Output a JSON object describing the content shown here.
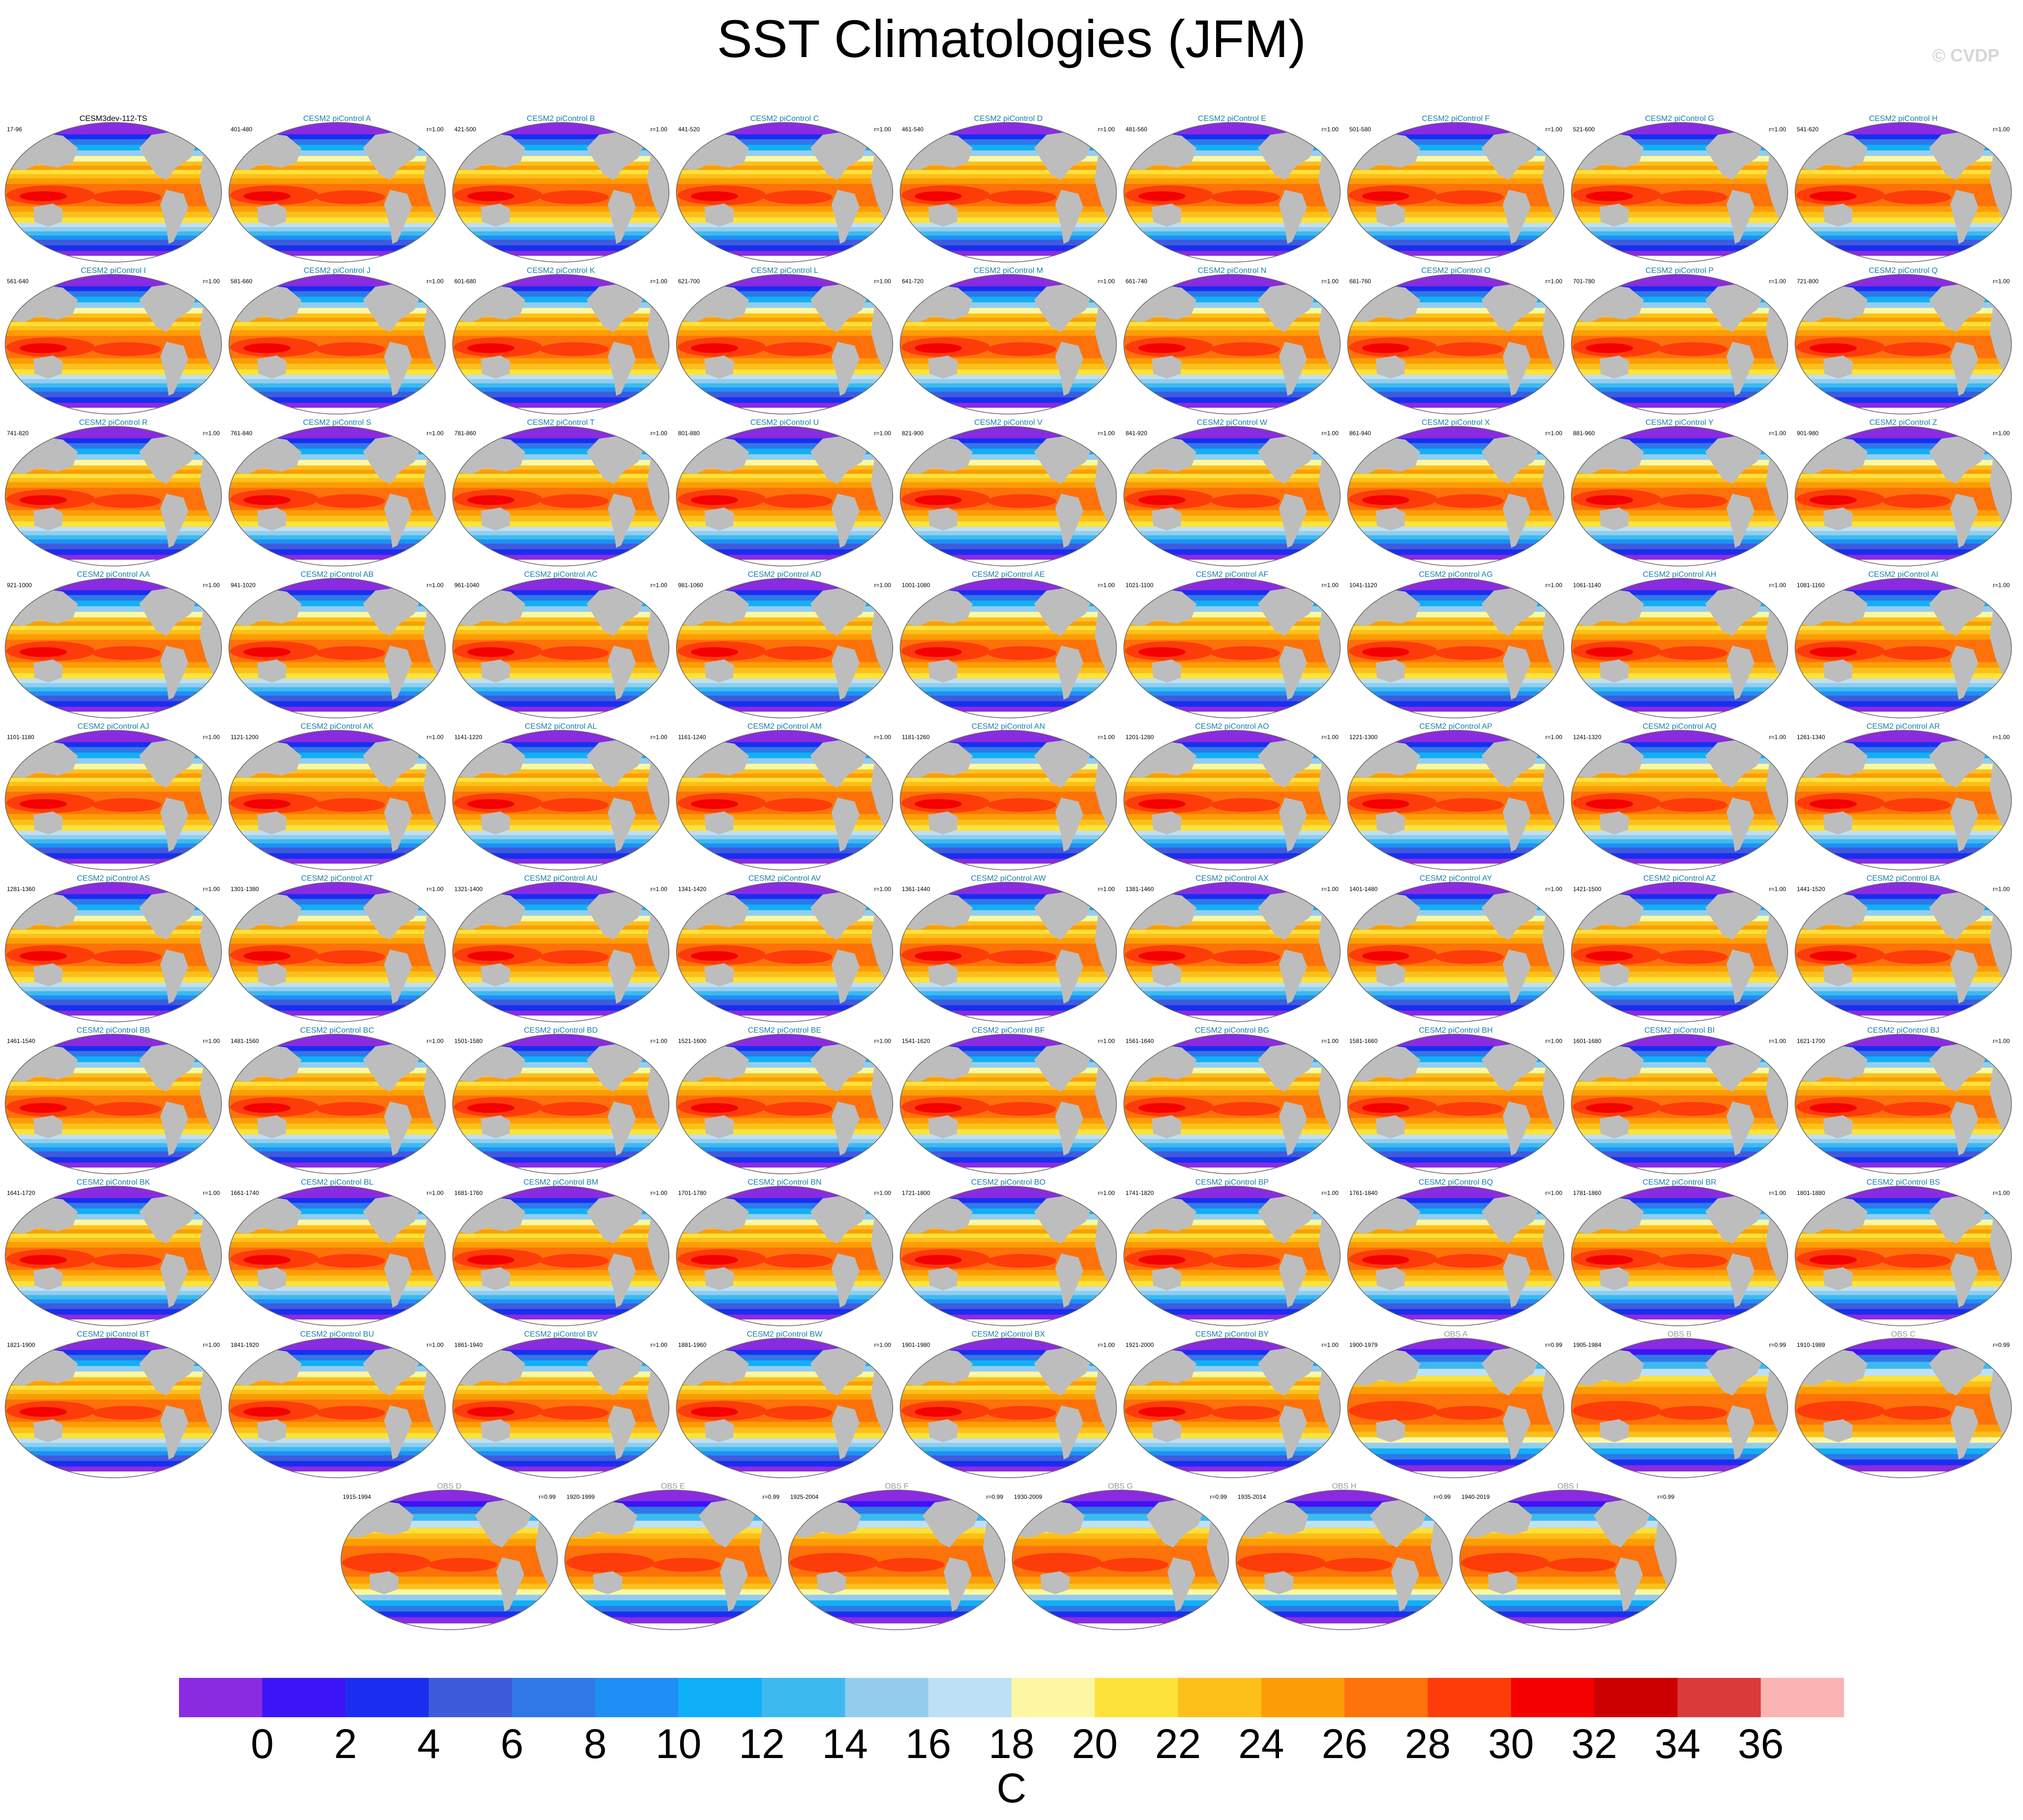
{
  "title": "SST Climatologies (JFM)",
  "copyright": "© CVDP",
  "panels": [
    {
      "title": "CESM3dev-112-TS",
      "left": "17-96",
      "right": "",
      "kind": "ref"
    },
    {
      "title": "CESM2 piControl A",
      "left": "401-480",
      "right": "r=1.00",
      "kind": "model"
    },
    {
      "title": "CESM2 piControl B",
      "left": "421-500",
      "right": "r=1.00",
      "kind": "model"
    },
    {
      "title": "CESM2 piControl C",
      "left": "441-520",
      "right": "r=1.00",
      "kind": "model"
    },
    {
      "title": "CESM2 piControl D",
      "left": "461-540",
      "right": "r=1.00",
      "kind": "model"
    },
    {
      "title": "CESM2 piControl E",
      "left": "481-560",
      "right": "r=1.00",
      "kind": "model"
    },
    {
      "title": "CESM2 piControl F",
      "left": "501-580",
      "right": "r=1.00",
      "kind": "model"
    },
    {
      "title": "CESM2 piControl G",
      "left": "521-600",
      "right": "r=1.00",
      "kind": "model"
    },
    {
      "title": "CESM2 piControl H",
      "left": "541-620",
      "right": "r=1.00",
      "kind": "model"
    },
    {
      "title": "CESM2 piControl I",
      "left": "561-640",
      "right": "r=1.00",
      "kind": "model"
    },
    {
      "title": "CESM2 piControl J",
      "left": "581-660",
      "right": "r=1.00",
      "kind": "model"
    },
    {
      "title": "CESM2 piControl K",
      "left": "601-680",
      "right": "r=1.00",
      "kind": "model"
    },
    {
      "title": "CESM2 piControl L",
      "left": "621-700",
      "right": "r=1.00",
      "kind": "model"
    },
    {
      "title": "CESM2 piControl M",
      "left": "641-720",
      "right": "r=1.00",
      "kind": "model"
    },
    {
      "title": "CESM2 piControl N",
      "left": "661-740",
      "right": "r=1.00",
      "kind": "model"
    },
    {
      "title": "CESM2 piControl O",
      "left": "681-760",
      "right": "r=1.00",
      "kind": "model"
    },
    {
      "title": "CESM2 piControl P",
      "left": "701-780",
      "right": "r=1.00",
      "kind": "model"
    },
    {
      "title": "CESM2 piControl Q",
      "left": "721-800",
      "right": "r=1.00",
      "kind": "model"
    },
    {
      "title": "CESM2 piControl R",
      "left": "741-820",
      "right": "r=1.00",
      "kind": "model"
    },
    {
      "title": "CESM2 piControl S",
      "left": "761-840",
      "right": "r=1.00",
      "kind": "model"
    },
    {
      "title": "CESM2 piControl T",
      "left": "781-860",
      "right": "r=1.00",
      "kind": "model"
    },
    {
      "title": "CESM2 piControl U",
      "left": "801-880",
      "right": "r=1.00",
      "kind": "model"
    },
    {
      "title": "CESM2 piControl V",
      "left": "821-900",
      "right": "r=1.00",
      "kind": "model"
    },
    {
      "title": "CESM2 piControl W",
      "left": "841-920",
      "right": "r=1.00",
      "kind": "model"
    },
    {
      "title": "CESM2 piControl X",
      "left": "861-940",
      "right": "r=1.00",
      "kind": "model"
    },
    {
      "title": "CESM2 piControl Y",
      "left": "881-960",
      "right": "r=1.00",
      "kind": "model"
    },
    {
      "title": "CESM2 piControl Z",
      "left": "901-980",
      "right": "r=1.00",
      "kind": "model"
    },
    {
      "title": "CESM2 piControl AA",
      "left": "921-1000",
      "right": "r=1.00",
      "kind": "model"
    },
    {
      "title": "CESM2 piControl AB",
      "left": "941-1020",
      "right": "r=1.00",
      "kind": "model"
    },
    {
      "title": "CESM2 piControl AC",
      "left": "961-1040",
      "right": "r=1.00",
      "kind": "model"
    },
    {
      "title": "CESM2 piControl AD",
      "left": "981-1060",
      "right": "r=1.00",
      "kind": "model"
    },
    {
      "title": "CESM2 piControl AE",
      "left": "1001-1080",
      "right": "r=1.00",
      "kind": "model"
    },
    {
      "title": "CESM2 piControl AF",
      "left": "1021-1100",
      "right": "r=1.00",
      "kind": "model"
    },
    {
      "title": "CESM2 piControl AG",
      "left": "1041-1120",
      "right": "r=1.00",
      "kind": "model"
    },
    {
      "title": "CESM2 piControl AH",
      "left": "1061-1140",
      "right": "r=1.00",
      "kind": "model"
    },
    {
      "title": "CESM2 piControl AI",
      "left": "1081-1160",
      "right": "r=1.00",
      "kind": "model"
    },
    {
      "title": "CESM2 piControl AJ",
      "left": "1101-1180",
      "right": "r=1.00",
      "kind": "model"
    },
    {
      "title": "CESM2 piControl AK",
      "left": "1121-1200",
      "right": "r=1.00",
      "kind": "model"
    },
    {
      "title": "CESM2 piControl AL",
      "left": "1141-1220",
      "right": "r=1.00",
      "kind": "model"
    },
    {
      "title": "CESM2 piControl AM",
      "left": "1161-1240",
      "right": "r=1.00",
      "kind": "model"
    },
    {
      "title": "CESM2 piControl AN",
      "left": "1181-1260",
      "right": "r=1.00",
      "kind": "model"
    },
    {
      "title": "CESM2 piControl AO",
      "left": "1201-1280",
      "right": "r=1.00",
      "kind": "model"
    },
    {
      "title": "CESM2 piControl AP",
      "left": "1221-1300",
      "right": "r=1.00",
      "kind": "model"
    },
    {
      "title": "CESM2 piControl AQ",
      "left": "1241-1320",
      "right": "r=1.00",
      "kind": "model"
    },
    {
      "title": "CESM2 piControl AR",
      "left": "1261-1340",
      "right": "r=1.00",
      "kind": "model"
    },
    {
      "title": "CESM2 piControl AS",
      "left": "1281-1360",
      "right": "r=1.00",
      "kind": "model"
    },
    {
      "title": "CESM2 piControl AT",
      "left": "1301-1380",
      "right": "r=1.00",
      "kind": "model"
    },
    {
      "title": "CESM2 piControl AU",
      "left": "1321-1400",
      "right": "r=1.00",
      "kind": "model"
    },
    {
      "title": "CESM2 piControl AV",
      "left": "1341-1420",
      "right": "r=1.00",
      "kind": "model"
    },
    {
      "title": "CESM2 piControl AW",
      "left": "1361-1440",
      "right": "r=1.00",
      "kind": "model"
    },
    {
      "title": "CESM2 piControl AX",
      "left": "1381-1460",
      "right": "r=1.00",
      "kind": "model"
    },
    {
      "title": "CESM2 piControl AY",
      "left": "1401-1480",
      "right": "r=1.00",
      "kind": "model"
    },
    {
      "title": "CESM2 piControl AZ",
      "left": "1421-1500",
      "right": "r=1.00",
      "kind": "model"
    },
    {
      "title": "CESM2 piControl BA",
      "left": "1441-1520",
      "right": "r=1.00",
      "kind": "model"
    },
    {
      "title": "CESM2 piControl BB",
      "left": "1461-1540",
      "right": "r=1.00",
      "kind": "model"
    },
    {
      "title": "CESM2 piControl BC",
      "left": "1481-1560",
      "right": "r=1.00",
      "kind": "model"
    },
    {
      "title": "CESM2 piControl BD",
      "left": "1501-1580",
      "right": "r=1.00",
      "kind": "model"
    },
    {
      "title": "CESM2 piControl BE",
      "left": "1521-1600",
      "right": "r=1.00",
      "kind": "model"
    },
    {
      "title": "CESM2 piControl BF",
      "left": "1541-1620",
      "right": "r=1.00",
      "kind": "model"
    },
    {
      "title": "CESM2 piControl BG",
      "left": "1561-1640",
      "right": "r=1.00",
      "kind": "model"
    },
    {
      "title": "CESM2 piControl BH",
      "left": "1581-1660",
      "right": "r=1.00",
      "kind": "model"
    },
    {
      "title": "CESM2 piControl BI",
      "left": "1601-1680",
      "right": "r=1.00",
      "kind": "model"
    },
    {
      "title": "CESM2 piControl BJ",
      "left": "1621-1700",
      "right": "r=1.00",
      "kind": "model"
    },
    {
      "title": "CESM2 piControl BK",
      "left": "1641-1720",
      "right": "r=1.00",
      "kind": "model"
    },
    {
      "title": "CESM2 piControl BL",
      "left": "1661-1740",
      "right": "r=1.00",
      "kind": "model"
    },
    {
      "title": "CESM2 piControl BM",
      "left": "1681-1760",
      "right": "r=1.00",
      "kind": "model"
    },
    {
      "title": "CESM2 piControl BN",
      "left": "1701-1780",
      "right": "r=1.00",
      "kind": "model"
    },
    {
      "title": "CESM2 piControl BO",
      "left": "1721-1800",
      "right": "r=1.00",
      "kind": "model"
    },
    {
      "title": "CESM2 piControl BP",
      "left": "1741-1820",
      "right": "r=1.00",
      "kind": "model"
    },
    {
      "title": "CESM2 piControl BQ",
      "left": "1761-1840",
      "right": "r=1.00",
      "kind": "model"
    },
    {
      "title": "CESM2 piControl BR",
      "left": "1781-1860",
      "right": "r=1.00",
      "kind": "model"
    },
    {
      "title": "CESM2 piControl BS",
      "left": "1801-1880",
      "right": "r=1.00",
      "kind": "model"
    },
    {
      "title": "CESM2 piControl BT",
      "left": "1821-1900",
      "right": "r=1.00",
      "kind": "model"
    },
    {
      "title": "CESM2 piControl BU",
      "left": "1841-1920",
      "right": "r=1.00",
      "kind": "model"
    },
    {
      "title": "CESM2 piControl BV",
      "left": "1861-1940",
      "right": "r=1.00",
      "kind": "model"
    },
    {
      "title": "CESM2 piControl BW",
      "left": "1881-1960",
      "right": "r=1.00",
      "kind": "model"
    },
    {
      "title": "CESM2 piControl BX",
      "left": "1901-1980",
      "right": "r=1.00",
      "kind": "model"
    },
    {
      "title": "CESM2 piControl BY",
      "left": "1921-2000",
      "right": "r=1.00",
      "kind": "model"
    },
    {
      "title": "OBS A",
      "left": "1900-1979",
      "right": "r=0.99",
      "kind": "obs"
    },
    {
      "title": "OBS B",
      "left": "1905-1984",
      "right": "r=0.99",
      "kind": "obs"
    },
    {
      "title": "OBS C",
      "left": "1910-1989",
      "right": "r=0.99",
      "kind": "obs"
    },
    {
      "title": "OBS D",
      "left": "1915-1994",
      "right": "r=0.99",
      "kind": "obs"
    },
    {
      "title": "OBS E",
      "left": "1920-1999",
      "right": "r=0.99",
      "kind": "obs"
    },
    {
      "title": "OBS F",
      "left": "1925-2004",
      "right": "r=0.99",
      "kind": "obs"
    },
    {
      "title": "OBS G",
      "left": "1930-2009",
      "right": "r=0.99",
      "kind": "obs"
    },
    {
      "title": "OBS H",
      "left": "1935-2014",
      "right": "r=0.99",
      "kind": "obs"
    },
    {
      "title": "OBS I",
      "left": "1940-2019",
      "right": "r=0.99",
      "kind": "obs"
    }
  ],
  "colors": {
    "ref_title": "#000000",
    "model_title": "#1a7fa8",
    "obs_title": "#9a9a9a",
    "land": "#bdbdbd",
    "scale": [
      "#8a2be2",
      "#3d14f5",
      "#1a2ef0",
      "#3e5bdc",
      "#2f78e6",
      "#1e90f5",
      "#10b0f8",
      "#3cbaf0",
      "#93cdee",
      "#bde0f5",
      "#fdf7a4",
      "#fde23a",
      "#fdc01a",
      "#fd9d05",
      "#fd720a",
      "#fd3c0a",
      "#f50000",
      "#cc0000",
      "#d93a3a",
      "#fbb3b3"
    ]
  },
  "colorbar": {
    "labels": [
      "0",
      "2",
      "4",
      "6",
      "8",
      "10",
      "12",
      "14",
      "16",
      "18",
      "20",
      "22",
      "24",
      "26",
      "28",
      "30",
      "32",
      "34",
      "36"
    ],
    "unit": "C"
  }
}
